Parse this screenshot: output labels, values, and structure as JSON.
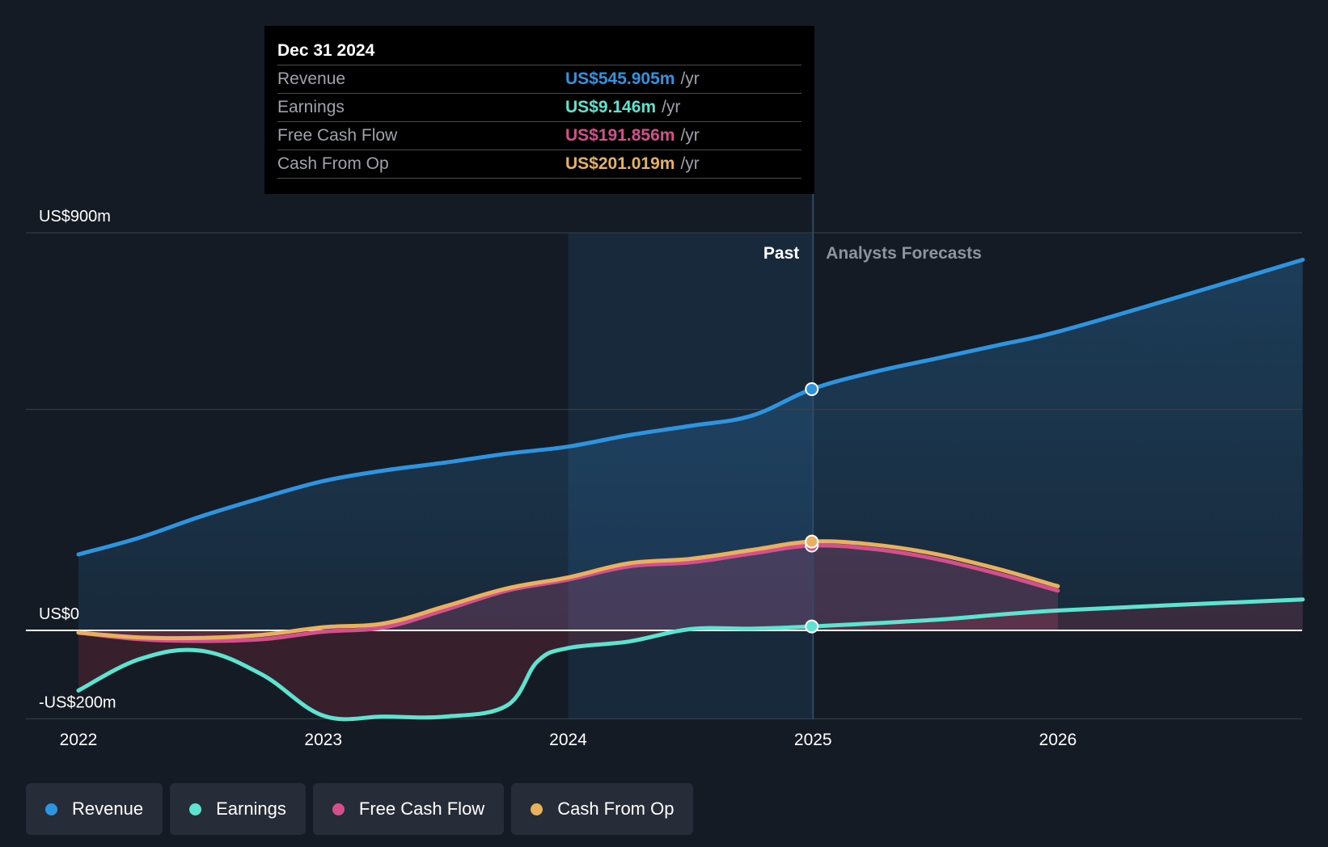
{
  "tooltip": {
    "date": "Dec 31 2024",
    "rows": [
      {
        "label": "Revenue",
        "value": "US$545.905m",
        "unit": "/yr",
        "color": "#2f94e0"
      },
      {
        "label": "Earnings",
        "value": "US$9.146m",
        "unit": "/yr",
        "color": "#5de3cf"
      },
      {
        "label": "Free Cash Flow",
        "value": "US$191.856m",
        "unit": "/yr",
        "color": "#d44f8c"
      },
      {
        "label": "Cash From Op",
        "value": "US$201.019m",
        "unit": "/yr",
        "color": "#e8b15f"
      }
    ]
  },
  "chart_data": {
    "type": "line",
    "ylim": [
      -200,
      900
    ],
    "y_tick_labels": [
      {
        "value": 900,
        "label": "US$900m"
      },
      {
        "value": 0,
        "label": "US$0"
      },
      {
        "value": -200,
        "label": "-US$200m"
      }
    ],
    "gridlines": [
      900,
      500,
      0,
      -200
    ],
    "xlim": [
      2021.9,
      2027.0
    ],
    "x_ticks": [
      2022,
      2023,
      2024,
      2025,
      2026
    ],
    "past_label": "Past",
    "forecast_label": "Analysts Forecasts",
    "divider_x": 2025.0,
    "highlight_start_x": 2024.0,
    "marker_x": 2024.995,
    "series": [
      {
        "name": "Revenue",
        "color": "#2f94e0",
        "x": [
          2022.0,
          2022.25,
          2022.5,
          2022.75,
          2023.0,
          2023.25,
          2023.5,
          2023.75,
          2024.0,
          2024.25,
          2024.5,
          2024.75,
          2024.995,
          2025.25,
          2025.5,
          2025.75,
          2026.0,
          2026.5,
          2027.0
        ],
        "y": [
          172,
          210,
          258,
          300,
          338,
          362,
          380,
          400,
          416,
          442,
          463,
          486,
          546,
          585,
          615,
          645,
          676,
          756,
          839
        ]
      },
      {
        "name": "Earnings",
        "color": "#5de3cf",
        "x": [
          2022.0,
          2022.25,
          2022.5,
          2022.75,
          2023.0,
          2023.25,
          2023.5,
          2023.75,
          2023.875,
          2024.0,
          2024.25,
          2024.5,
          2024.75,
          2024.995,
          2025.5,
          2026.0,
          2027.0
        ],
        "y": [
          -136,
          -65,
          -46,
          -100,
          -193,
          -195,
          -195,
          -170,
          -70,
          -40,
          -25,
          3,
          4,
          9,
          24,
          45,
          70
        ]
      },
      {
        "name": "Free Cash Flow",
        "color": "#d44f8c",
        "x": [
          2022.0,
          2022.25,
          2022.5,
          2022.75,
          2023.0,
          2023.25,
          2023.5,
          2023.75,
          2024.0,
          2024.25,
          2024.5,
          2024.75,
          2024.995,
          2025.25,
          2025.5,
          2025.75,
          2026.0
        ],
        "y": [
          -5,
          -20,
          -24,
          -20,
          -3,
          7,
          47,
          90,
          115,
          145,
          154,
          174,
          192,
          184,
          162,
          129,
          90
        ]
      },
      {
        "name": "Cash From Op",
        "color": "#e8b15f",
        "x": [
          2022.0,
          2022.25,
          2022.5,
          2022.75,
          2023.0,
          2023.25,
          2023.5,
          2023.75,
          2024.0,
          2024.25,
          2024.5,
          2024.75,
          2024.995,
          2025.25,
          2025.5,
          2025.75,
          2026.0
        ],
        "y": [
          -5,
          -16,
          -17,
          -10,
          7,
          16,
          55,
          95,
          120,
          152,
          162,
          182,
          201,
          194,
          173,
          140,
          100
        ]
      }
    ]
  },
  "legend": [
    {
      "label": "Revenue",
      "color": "#2f94e0"
    },
    {
      "label": "Earnings",
      "color": "#5de3cf"
    },
    {
      "label": "Free Cash Flow",
      "color": "#d44f8c"
    },
    {
      "label": "Cash From Op",
      "color": "#e8b15f"
    }
  ]
}
